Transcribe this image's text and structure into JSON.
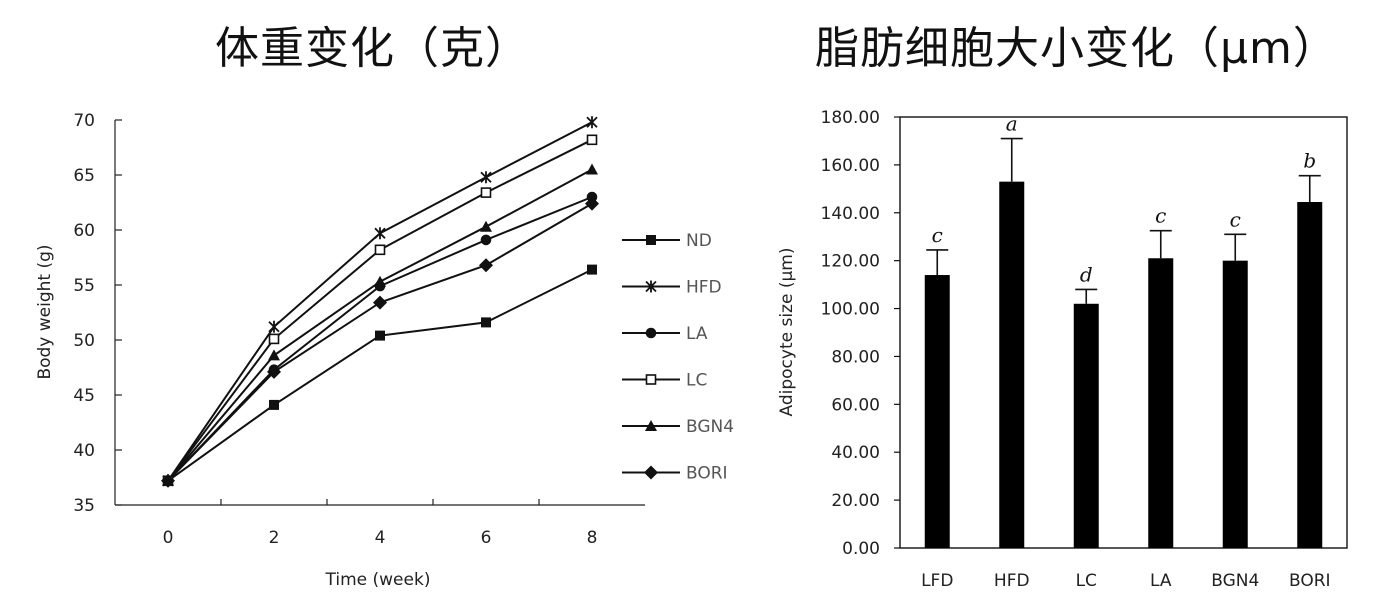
{
  "titles": {
    "left": "体重变化（克）",
    "right": "脂肪细胞大小变化（μm）"
  },
  "chart_data": [
    {
      "type": "line",
      "xlabel": "Time (week)",
      "ylabel": "Body weight (g)",
      "x": [
        0,
        2,
        4,
        6,
        8
      ],
      "xticks": [
        "0",
        "2",
        "4",
        "6",
        "8"
      ],
      "ylim": [
        35,
        70
      ],
      "yticks": [
        "35",
        "40",
        "45",
        "50",
        "55",
        "60",
        "65",
        "70"
      ],
      "legend_position": "right",
      "series": [
        {
          "name": "ND",
          "marker": "square-filled",
          "values": [
            37.2,
            44.1,
            50.4,
            51.6,
            56.4
          ]
        },
        {
          "name": "HFD",
          "marker": "asterisk",
          "values": [
            37.2,
            51.2,
            59.7,
            64.8,
            69.8
          ]
        },
        {
          "name": "LA",
          "marker": "circle-filled",
          "values": [
            37.2,
            47.3,
            54.9,
            59.1,
            63.0
          ]
        },
        {
          "name": "LC",
          "marker": "square-open",
          "values": [
            37.2,
            50.1,
            58.2,
            63.4,
            68.2
          ]
        },
        {
          "name": "BGN4",
          "marker": "triangle-filled",
          "values": [
            37.2,
            48.6,
            55.3,
            60.3,
            65.5
          ]
        },
        {
          "name": "BORI",
          "marker": "diamond-filled",
          "values": [
            37.2,
            47.1,
            53.4,
            56.8,
            62.4
          ]
        }
      ]
    },
    {
      "type": "bar",
      "ylabel": "Adipocyte size (μm)",
      "categories": [
        "LFD",
        "HFD",
        "LC",
        "LA",
        "BGN4",
        "BORI"
      ],
      "values": [
        114.0,
        153.0,
        102.0,
        121.0,
        120.0,
        144.5
      ],
      "errors": [
        10.5,
        18.0,
        6.0,
        11.5,
        11.0,
        11.0
      ],
      "labels": [
        "c",
        "a",
        "d",
        "c",
        "c",
        "b"
      ],
      "ylim": [
        0,
        180
      ],
      "yticks": [
        "0.00",
        "20.00",
        "40.00",
        "60.00",
        "80.00",
        "100.00",
        "120.00",
        "140.00",
        "160.00",
        "180.00"
      ],
      "bar_color": "#000000"
    }
  ]
}
